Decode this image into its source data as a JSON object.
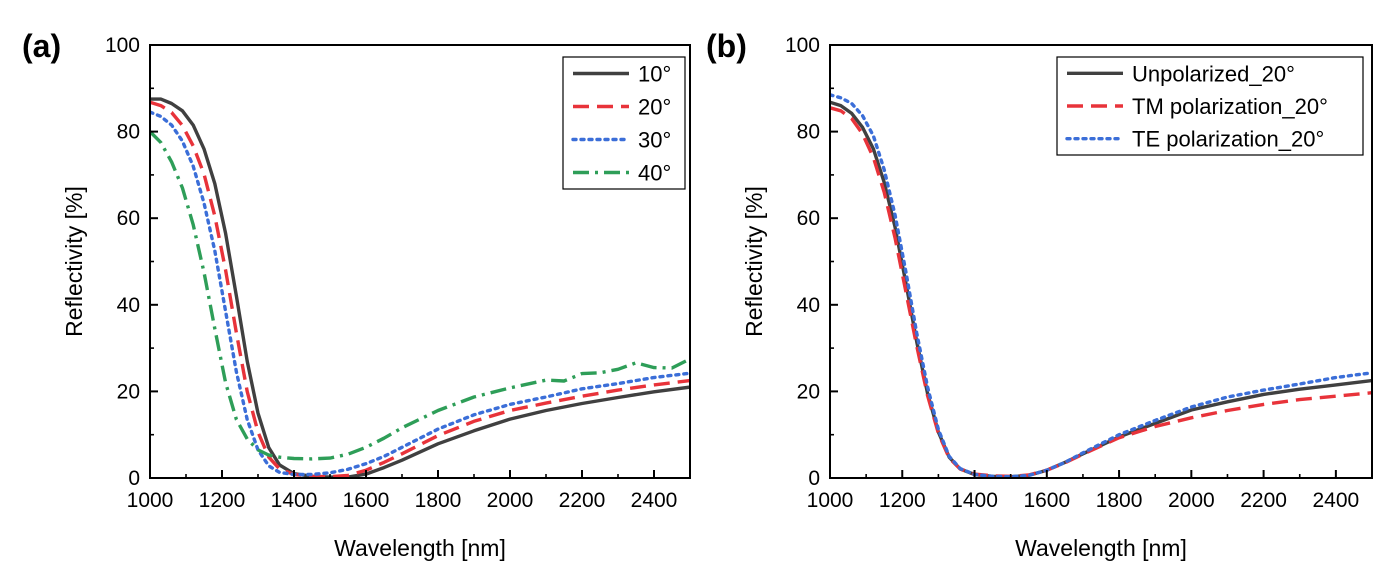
{
  "chart_data": [
    {
      "type": "line",
      "panel_label": "(a)",
      "xlabel": "Wavelength [nm]",
      "ylabel": "Reflectivity [%]",
      "xlim": [
        1000,
        2500
      ],
      "ylim": [
        0,
        100
      ],
      "xticks": [
        1000,
        1200,
        1400,
        1600,
        1800,
        2000,
        2200,
        2400
      ],
      "yticks": [
        0,
        20,
        40,
        60,
        80,
        100
      ],
      "legend_position": "top-right",
      "series": [
        {
          "name": "10°",
          "color": "#404040",
          "style": "solid",
          "x": [
            1000,
            1030,
            1060,
            1090,
            1120,
            1150,
            1180,
            1210,
            1240,
            1270,
            1300,
            1330,
            1360,
            1400,
            1450,
            1500,
            1550,
            1600,
            1650,
            1700,
            1800,
            1900,
            2000,
            2100,
            2200,
            2300,
            2400,
            2500
          ],
          "y": [
            87.5,
            87.5,
            86.5,
            84.8,
            81.5,
            76,
            68,
            56.5,
            42,
            27,
            15,
            7,
            3,
            1,
            0.4,
            0.2,
            0.2,
            0.9,
            2.4,
            4.1,
            7.9,
            10.9,
            13.6,
            15.6,
            17.2,
            18.6,
            19.9,
            21
          ]
        },
        {
          "name": "20°",
          "color": "#e8333a",
          "style": "dash",
          "x": [
            1000,
            1030,
            1060,
            1090,
            1120,
            1150,
            1180,
            1210,
            1240,
            1270,
            1300,
            1330,
            1360,
            1400,
            1450,
            1500,
            1550,
            1600,
            1650,
            1700,
            1800,
            1900,
            2000,
            2100,
            2200,
            2300,
            2400,
            2500
          ],
          "y": [
            86.8,
            86,
            84.4,
            81.4,
            76.7,
            70.2,
            60.5,
            48,
            33.5,
            20,
            10.6,
            4.8,
            2.1,
            0.8,
            0.4,
            0.3,
            0.6,
            1.8,
            3.6,
            5.6,
            9.8,
            13.1,
            15.6,
            17.3,
            18.9,
            20.3,
            21.5,
            22.5
          ]
        },
        {
          "name": "30°",
          "color": "#3b6ed8",
          "style": "dot",
          "x": [
            1000,
            1030,
            1060,
            1090,
            1120,
            1150,
            1180,
            1210,
            1240,
            1270,
            1300,
            1330,
            1360,
            1400,
            1450,
            1500,
            1550,
            1600,
            1650,
            1700,
            1800,
            1900,
            2000,
            2100,
            2200,
            2300,
            2400,
            2500
          ],
          "y": [
            84.5,
            83.5,
            81.5,
            77.8,
            72,
            63.5,
            52.5,
            38.5,
            24.5,
            13.5,
            6.5,
            2.8,
            1.3,
            0.8,
            0.8,
            1.2,
            2,
            3.3,
            5,
            7.1,
            11.3,
            14.6,
            17,
            18.7,
            20.6,
            21.8,
            23.2,
            24.2
          ]
        },
        {
          "name": "40°",
          "color": "#2e9e58",
          "style": "dashdot",
          "x": [
            1000,
            1030,
            1060,
            1090,
            1120,
            1150,
            1180,
            1210,
            1240,
            1270,
            1300,
            1330,
            1360,
            1400,
            1450,
            1500,
            1550,
            1600,
            1650,
            1700,
            1800,
            1900,
            2000,
            2100,
            2150,
            2200,
            2250,
            2300,
            2350,
            2400,
            2450,
            2500
          ],
          "y": [
            80,
            77.5,
            73,
            67,
            58.5,
            47.5,
            34.5,
            22,
            13.5,
            9,
            6.5,
            5.3,
            4.8,
            4.5,
            4.4,
            4.6,
            5.5,
            7.1,
            9.2,
            11.6,
            15.6,
            18.7,
            20.8,
            22.6,
            22.4,
            24.1,
            24.3,
            25.1,
            26.6,
            25.5,
            25.4,
            27.5
          ]
        }
      ]
    },
    {
      "type": "line",
      "panel_label": "(b)",
      "xlabel": "Wavelength [nm]",
      "ylabel": "Reflectivity [%]",
      "xlim": [
        1000,
        2500
      ],
      "ylim": [
        0,
        100
      ],
      "xticks": [
        1000,
        1200,
        1400,
        1600,
        1800,
        2000,
        2200,
        2400
      ],
      "yticks": [
        0,
        20,
        40,
        60,
        80,
        100
      ],
      "legend_position": "top-right",
      "series": [
        {
          "name": "Unpolarized_20°",
          "color": "#404040",
          "style": "solid",
          "x": [
            1000,
            1030,
            1060,
            1090,
            1120,
            1150,
            1180,
            1210,
            1240,
            1270,
            1300,
            1330,
            1360,
            1400,
            1450,
            1500,
            1550,
            1600,
            1650,
            1700,
            1800,
            1900,
            2000,
            2100,
            2200,
            2300,
            2400,
            2500
          ],
          "y": [
            86.8,
            86,
            84.2,
            81,
            76,
            68.3,
            58,
            45,
            31.5,
            19.5,
            10.6,
            4.8,
            2.1,
            0.8,
            0.4,
            0.3,
            0.6,
            1.8,
            3.6,
            5.6,
            9.5,
            12.6,
            15.7,
            17.6,
            19.3,
            20.5,
            21.5,
            22.5
          ]
        },
        {
          "name": "TM polarization_20°",
          "color": "#e8333a",
          "style": "dash",
          "x": [
            1000,
            1030,
            1060,
            1090,
            1120,
            1150,
            1180,
            1210,
            1240,
            1270,
            1300,
            1330,
            1360,
            1400,
            1450,
            1500,
            1550,
            1600,
            1650,
            1700,
            1800,
            1900,
            2000,
            2100,
            2200,
            2300,
            2400,
            2500
          ],
          "y": [
            85.5,
            84.8,
            83,
            79.5,
            74,
            66,
            55.5,
            43,
            30.5,
            19,
            10.3,
            4.6,
            2.1,
            0.9,
            0.5,
            0.4,
            0.7,
            1.8,
            3.5,
            5.5,
            9.3,
            11.9,
            13.9,
            15.6,
            17,
            18.1,
            18.9,
            19.7
          ]
        },
        {
          "name": "TE polarization_20°",
          "color": "#3b6ed8",
          "style": "dot",
          "x": [
            1000,
            1030,
            1060,
            1090,
            1120,
            1150,
            1180,
            1210,
            1240,
            1270,
            1300,
            1330,
            1360,
            1400,
            1450,
            1500,
            1550,
            1600,
            1650,
            1700,
            1800,
            1900,
            2000,
            2100,
            2200,
            2300,
            2400,
            2500
          ],
          "y": [
            88.5,
            87.8,
            86.5,
            83.7,
            79,
            71.2,
            60.8,
            47.6,
            33.5,
            21,
            11.2,
            5,
            2.2,
            0.8,
            0.4,
            0.3,
            0.6,
            1.8,
            3.6,
            5.8,
            10,
            13.3,
            16.4,
            18.7,
            20.3,
            21.7,
            23.2,
            24.3
          ]
        }
      ]
    }
  ]
}
